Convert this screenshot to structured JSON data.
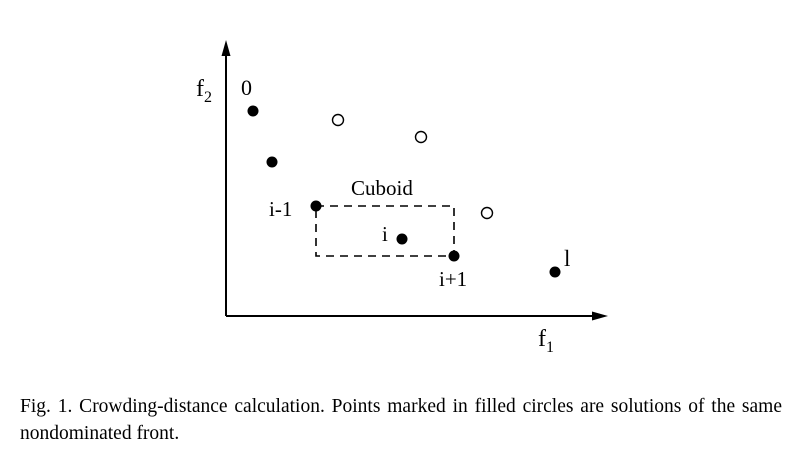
{
  "figure": {
    "axes": {
      "x_label": "f",
      "x_sub": "1",
      "y_label": "f",
      "y_sub": "2"
    },
    "point_labels": {
      "first": "0",
      "prev": "i-1",
      "current": "i",
      "next": "i+1",
      "last": "l"
    },
    "cuboid_label": "Cuboid",
    "filled_points": [
      {
        "id": "p0"
      },
      {
        "id": "p1"
      },
      {
        "id": "p-i-minus-1"
      },
      {
        "id": "p-i"
      },
      {
        "id": "p-i-plus-1"
      },
      {
        "id": "p-l"
      }
    ],
    "open_points": [
      {
        "id": "o1"
      },
      {
        "id": "o2"
      },
      {
        "id": "o3"
      }
    ]
  },
  "caption": {
    "text": "Fig. 1.  Crowding-distance calculation. Points marked in filled circles are solutions of the same nondominated front."
  }
}
